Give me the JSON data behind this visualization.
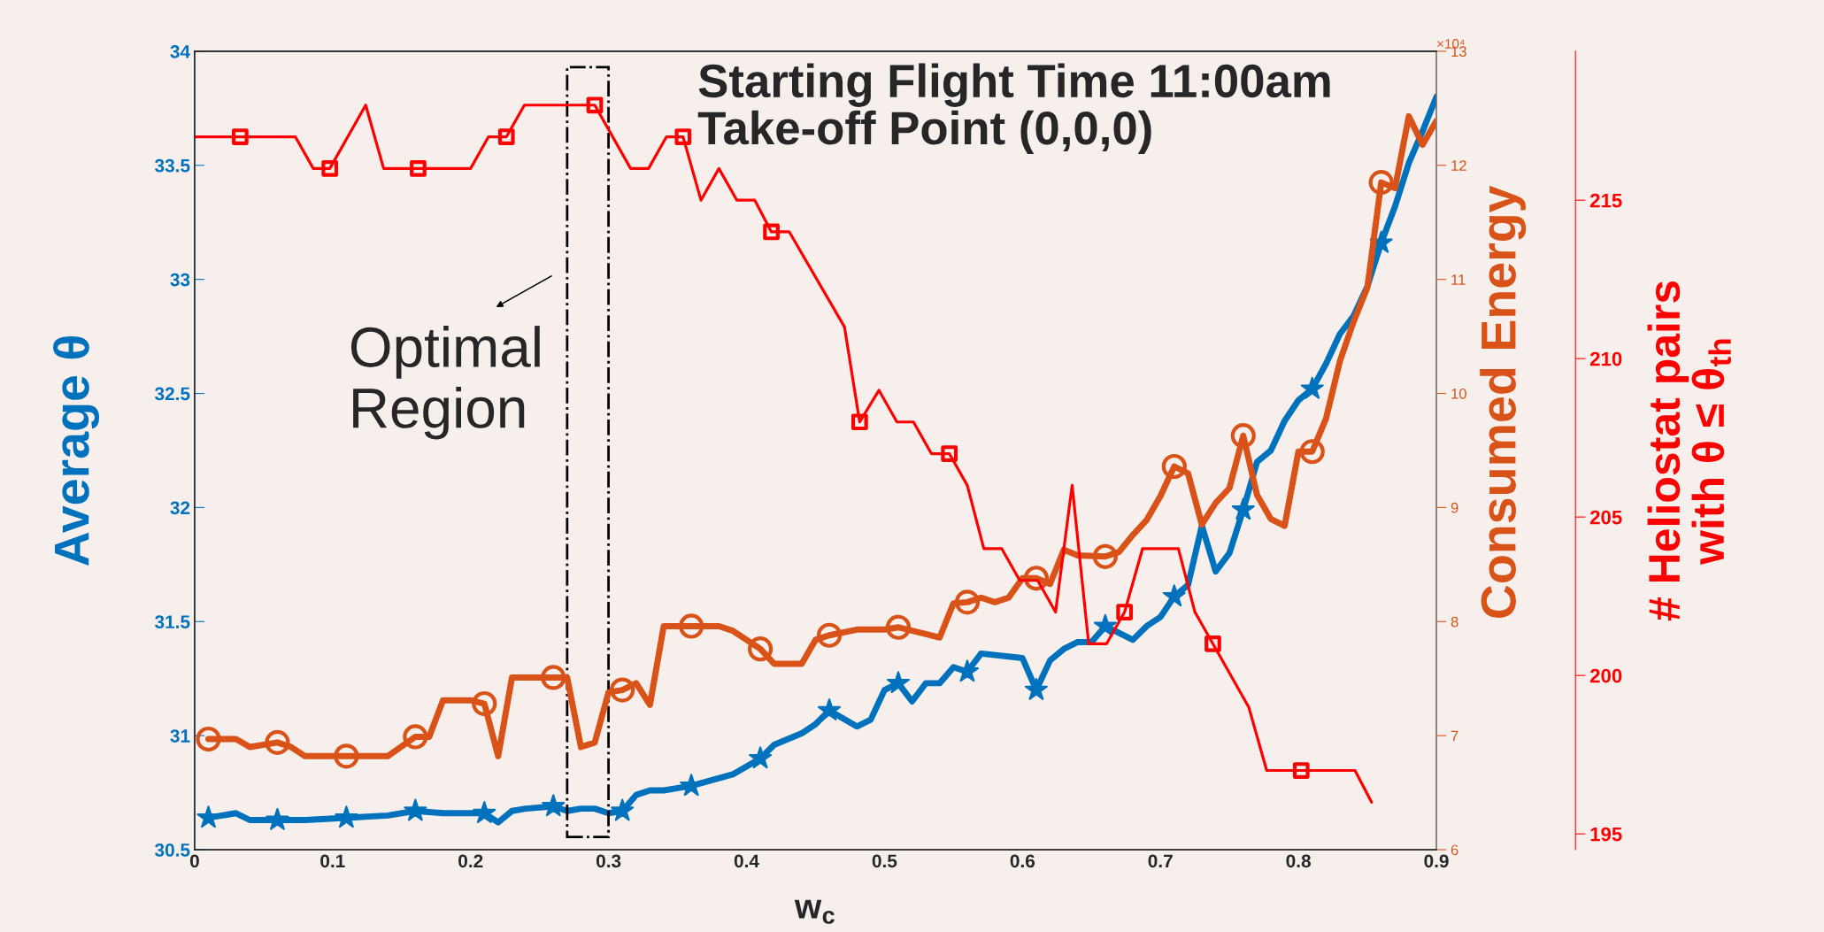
{
  "chart_data": {
    "type": "line",
    "title": "Starting Flight Time 11:00am\nTake-off Point (0,0,0)",
    "xlabel": "w$_{c}$",
    "ylabel": "Average θ",
    "y2label": "Consumed Energy",
    "y3label": "# Heliostat pairs\nwith θ ≤ θ$_{th}$",
    "xlim": [
      0,
      0.9
    ],
    "xticks": [
      0,
      0.1,
      0.2,
      0.3,
      0.4,
      0.5,
      0.6,
      0.7,
      0.8,
      0.9
    ],
    "ylim": [
      30.5,
      34
    ],
    "yticks": [
      30.5,
      31,
      31.5,
      32,
      32.5,
      33,
      33.5,
      34
    ],
    "y2lim": [
      6,
      13
    ],
    "y2ticks": [
      6,
      7,
      8,
      9,
      10,
      11,
      12,
      13
    ],
    "y3lim": [
      194.5,
      219.7
    ],
    "y3ticks": [
      195,
      200,
      205,
      210,
      215
    ],
    "grid": false,
    "legend": false,
    "annotations": [
      "×10⁴",
      "Optimal\nRegion"
    ],
    "series": [
      {
        "axis": "y",
        "color": "#0072bd",
        "x": [
          0.01,
          0.03,
          0.04,
          0.06,
          0.08,
          0.11,
          0.14,
          0.16,
          0.18,
          0.21,
          0.22,
          0.23,
          0.24,
          0.26,
          0.27,
          0.28,
          0.29,
          0.3,
          0.31,
          0.32,
          0.33,
          0.34,
          0.36,
          0.39,
          0.41,
          0.42,
          0.44,
          0.45,
          0.46,
          0.48,
          0.49,
          0.5,
          0.51,
          0.52,
          0.53,
          0.54,
          0.55,
          0.56,
          0.57,
          0.6,
          0.61,
          0.62,
          0.63,
          0.64,
          0.65,
          0.66,
          0.67,
          0.68,
          0.69,
          0.7,
          0.71,
          0.72,
          0.73,
          0.74,
          0.75,
          0.76,
          0.77,
          0.78,
          0.79,
          0.8,
          0.81,
          0.82,
          0.83,
          0.84,
          0.85,
          0.86,
          0.87,
          0.88,
          0.89,
          0.9
        ],
        "values": [
          30.64,
          30.66,
          30.63,
          30.63,
          30.63,
          30.64,
          30.65,
          30.67,
          30.66,
          30.66,
          30.62,
          30.67,
          30.68,
          30.69,
          30.67,
          30.68,
          30.68,
          30.66,
          30.67,
          30.74,
          30.76,
          30.76,
          30.78,
          30.83,
          30.9,
          30.96,
          31.01,
          31.05,
          31.11,
          31.04,
          31.07,
          31.2,
          31.23,
          31.15,
          31.23,
          31.23,
          31.3,
          31.28,
          31.36,
          31.34,
          31.2,
          31.33,
          31.38,
          31.41,
          31.41,
          31.48,
          31.45,
          31.42,
          31.48,
          31.52,
          31.61,
          31.66,
          31.92,
          31.72,
          31.8,
          31.99,
          32.2,
          32.25,
          32.38,
          32.47,
          32.52,
          32.63,
          32.76,
          32.84,
          32.97,
          33.16,
          33.32,
          33.51,
          33.65,
          33.8
        ]
      },
      {
        "type": "scatter",
        "axis": "y",
        "color": "#0072bd",
        "marker": "star",
        "x": [
          0.01,
          0.06,
          0.11,
          0.16,
          0.21,
          0.26,
          0.31,
          0.36,
          0.41,
          0.46,
          0.51,
          0.56,
          0.61,
          0.66,
          0.71,
          0.76,
          0.81,
          0.86
        ],
        "values": [
          30.64,
          30.63,
          30.64,
          30.67,
          30.66,
          30.69,
          30.67,
          30.78,
          30.9,
          31.11,
          31.23,
          31.28,
          31.2,
          31.48,
          31.61,
          31.99,
          32.52,
          33.16
        ]
      },
      {
        "axis": "y2",
        "color": "#d95319",
        "x": [
          0.01,
          0.03,
          0.04,
          0.06,
          0.07,
          0.08,
          0.11,
          0.14,
          0.16,
          0.17,
          0.18,
          0.2,
          0.21,
          0.22,
          0.23,
          0.26,
          0.27,
          0.28,
          0.29,
          0.3,
          0.31,
          0.32,
          0.33,
          0.34,
          0.36,
          0.38,
          0.39,
          0.41,
          0.42,
          0.44,
          0.45,
          0.46,
          0.48,
          0.5,
          0.51,
          0.53,
          0.54,
          0.55,
          0.56,
          0.57,
          0.58,
          0.59,
          0.6,
          0.61,
          0.62,
          0.63,
          0.64,
          0.66,
          0.67,
          0.68,
          0.69,
          0.7,
          0.71,
          0.72,
          0.73,
          0.74,
          0.75,
          0.76,
          0.77,
          0.78,
          0.79,
          0.8,
          0.81,
          0.82,
          0.83,
          0.84,
          0.85,
          0.86,
          0.87,
          0.88,
          0.89,
          0.9
        ],
        "values": [
          6.97,
          6.97,
          6.9,
          6.94,
          6.9,
          6.82,
          6.82,
          6.82,
          6.99,
          6.99,
          7.31,
          7.31,
          7.28,
          6.82,
          7.51,
          7.51,
          7.51,
          6.9,
          6.94,
          7.38,
          7.4,
          7.46,
          7.27,
          7.96,
          7.96,
          7.96,
          7.92,
          7.76,
          7.63,
          7.63,
          7.84,
          7.88,
          7.93,
          7.93,
          7.95,
          7.89,
          7.86,
          8.16,
          8.17,
          8.21,
          8.17,
          8.21,
          8.38,
          8.38,
          8.33,
          8.63,
          8.58,
          8.57,
          8.61,
          8.76,
          8.89,
          9.1,
          9.36,
          9.3,
          8.85,
          9.04,
          9.17,
          9.63,
          9.11,
          8.9,
          8.84,
          9.49,
          9.49,
          9.78,
          10.28,
          10.63,
          10.93,
          11.85,
          11.8,
          12.43,
          12.18,
          12.39
        ]
      },
      {
        "type": "scatter",
        "axis": "y2",
        "color": "#d95319",
        "marker": "circle",
        "x": [
          0.01,
          0.06,
          0.11,
          0.16,
          0.21,
          0.26,
          0.31,
          0.36,
          0.41,
          0.46,
          0.51,
          0.56,
          0.61,
          0.66,
          0.71,
          0.76,
          0.81,
          0.86
        ],
        "values": [
          6.97,
          6.94,
          6.82,
          6.99,
          7.28,
          7.51,
          7.4,
          7.96,
          7.76,
          7.88,
          7.95,
          8.17,
          8.38,
          8.57,
          9.36,
          9.63,
          9.49,
          11.85
        ]
      },
      {
        "axis": "y3",
        "color": "#ff0000",
        "x": [
          0,
          0.073,
          0.086,
          0.098,
          0.124,
          0.137,
          0.2,
          0.213,
          0.226,
          0.239,
          0.29,
          0.316,
          0.329,
          0.342,
          0.354,
          0.367,
          0.38,
          0.393,
          0.406,
          0.418,
          0.431,
          0.471,
          0.482,
          0.496,
          0.509,
          0.521,
          0.534,
          0.547,
          0.56,
          0.572,
          0.585,
          0.598,
          0.611,
          0.624,
          0.636,
          0.648,
          0.661,
          0.674,
          0.687,
          0.713,
          0.725,
          0.738,
          0.764,
          0.777,
          0.802,
          0.841,
          0.853
        ],
        "values": [
          217,
          217,
          216,
          216,
          218,
          216,
          216,
          217,
          217,
          218,
          218,
          216,
          216,
          217,
          217,
          215,
          216,
          215,
          215,
          214,
          214,
          211,
          208,
          209,
          208,
          208,
          207,
          207,
          206,
          204,
          204,
          203,
          203,
          202,
          206,
          201,
          201,
          202,
          204,
          204,
          202,
          201,
          199,
          197,
          197,
          197,
          196
        ]
      },
      {
        "type": "scatter",
        "axis": "y3",
        "color": "#ff0000",
        "marker": "square",
        "x": [
          0.033,
          0.098,
          0.162,
          0.226,
          0.29,
          0.354,
          0.418,
          0.482,
          0.547,
          0.674,
          0.738,
          0.802
        ],
        "values": [
          217,
          216,
          216,
          217,
          218,
          217,
          214,
          208,
          207,
          202,
          201,
          197
        ]
      }
    ]
  }
}
